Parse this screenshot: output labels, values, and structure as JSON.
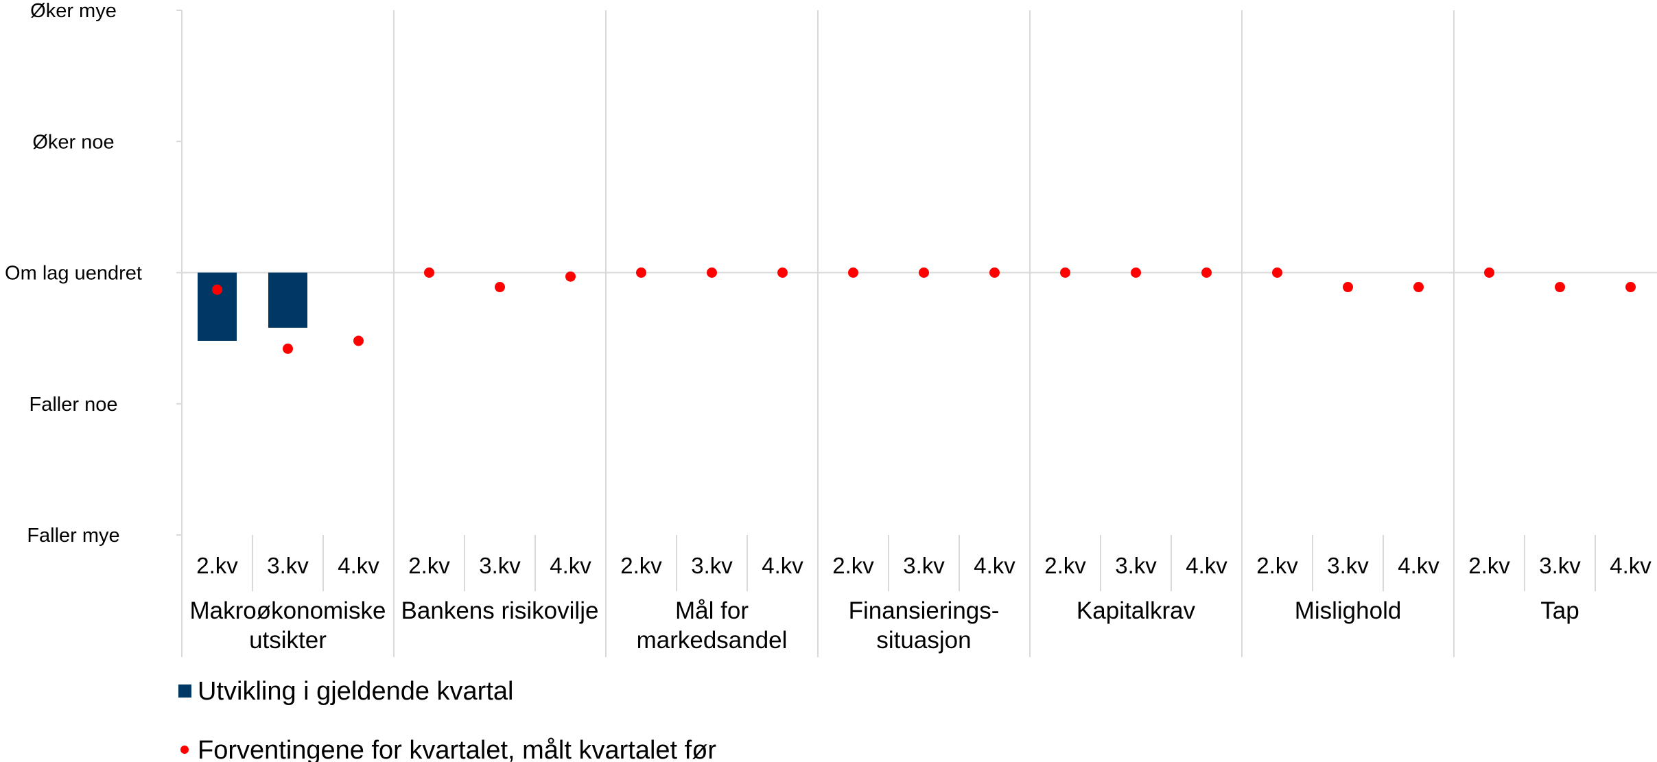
{
  "chart_data": {
    "type": "bar",
    "y_scale_labels": [
      "Øker mye",
      "Øker noe",
      "Om lag uendret",
      "Faller noe",
      "Faller mye"
    ],
    "ylim": [
      -2,
      2
    ],
    "groups": [
      {
        "name_lines": [
          "Makroøkonomiske",
          "utsikter"
        ],
        "bars": [
          -0.52,
          -0.42,
          null
        ],
        "expectations": [
          -0.13,
          -0.58,
          -0.52
        ]
      },
      {
        "name_lines": [
          "Bankens risikovilje"
        ],
        "bars": [
          null,
          null,
          null
        ],
        "expectations": [
          0,
          -0.11,
          -0.03
        ]
      },
      {
        "name_lines": [
          "Mål for",
          "markedsandel"
        ],
        "bars": [
          null,
          null,
          null
        ],
        "expectations": [
          0,
          0,
          0
        ]
      },
      {
        "name_lines": [
          "Finansierings-",
          "situasjon"
        ],
        "bars": [
          null,
          null,
          null
        ],
        "expectations": [
          0,
          0,
          0
        ]
      },
      {
        "name_lines": [
          "Kapitalkrav"
        ],
        "bars": [
          null,
          null,
          null
        ],
        "expectations": [
          0,
          0,
          0
        ]
      },
      {
        "name_lines": [
          "Mislighold"
        ],
        "bars": [
          null,
          null,
          null
        ],
        "expectations": [
          0,
          -0.11,
          -0.11
        ]
      },
      {
        "name_lines": [
          "Tap"
        ],
        "bars": [
          null,
          null,
          null
        ],
        "expectations": [
          0,
          -0.11,
          -0.11
        ]
      }
    ],
    "quarters": [
      "2.kv",
      "3.kv",
      "4.kv"
    ],
    "series": [
      {
        "name": "Utvikling i gjeldende kvartal",
        "kind": "bar",
        "color": "#003865"
      },
      {
        "name": "Forventingene for kvartalet, målt kvartalet før",
        "kind": "dot",
        "color": "#ff0000"
      }
    ],
    "legend_position": "bottom-left"
  }
}
